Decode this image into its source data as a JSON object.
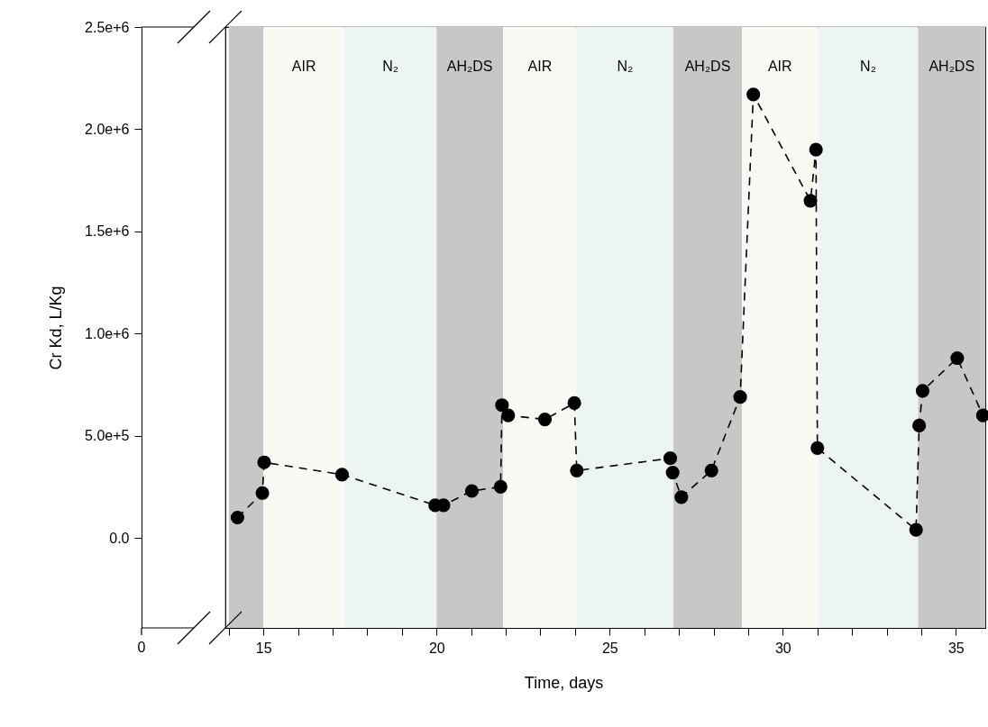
{
  "chart_data": {
    "type": "line",
    "xlabel": "Time, days",
    "ylabel": "Cr Kd, L/Kg",
    "xlim": [
      13.9,
      35.85
    ],
    "ylim": [
      -440000,
      2500000
    ],
    "xticks": [
      {
        "value": 14,
        "label": null
      },
      15,
      {
        "value": 16,
        "label": null
      },
      {
        "value": 17,
        "label": null
      },
      {
        "value": 18,
        "label": null
      },
      {
        "value": 19,
        "label": null
      },
      20,
      {
        "value": 21,
        "label": null
      },
      {
        "value": 22,
        "label": null
      },
      {
        "value": 23,
        "label": null
      },
      {
        "value": 24,
        "label": null
      },
      25,
      {
        "value": 26,
        "label": null
      },
      {
        "value": 27,
        "label": null
      },
      {
        "value": 28,
        "label": null
      },
      {
        "value": 29,
        "label": null
      },
      30,
      {
        "value": 31,
        "label": null
      },
      {
        "value": 32,
        "label": null
      },
      {
        "value": 33,
        "label": null
      },
      {
        "value": 34,
        "label": null
      },
      35
    ],
    "yticks": [
      {
        "value": 0,
        "label": "0.0"
      },
      {
        "value": 500000,
        "label": "5.0e+5"
      },
      {
        "value": 1000000,
        "label": "1.0e+6"
      },
      {
        "value": 1500000,
        "label": "1.5e+6"
      },
      {
        "value": 2000000,
        "label": "2.0e+6"
      },
      {
        "value": 2500000,
        "label": "2.5e+6"
      }
    ],
    "x": [
      14.25,
      14.97,
      15.02,
      17.27,
      19.96,
      20.2,
      21.02,
      21.85,
      21.89,
      22.07,
      23.13,
      23.98,
      24.05,
      26.75,
      26.82,
      27.07,
      27.94,
      28.77,
      29.15,
      30.8,
      30.96,
      31.0,
      33.85,
      33.94,
      34.04,
      35.04,
      35.78
    ],
    "series": [
      {
        "color": "#000000",
        "values": [
          100000,
          220000,
          370000,
          310000,
          160000,
          160000,
          230000,
          250000,
          650000,
          600000,
          580000,
          660000,
          330000,
          390000,
          320000,
          200000,
          330000,
          690000,
          2170000,
          1650000,
          1900000,
          440000,
          40000,
          550000,
          720000,
          880000,
          600000
        ]
      }
    ],
    "bands": [
      {
        "axis": "x",
        "from": 14.0,
        "to": 15.0,
        "color": "#c6c7c6"
      },
      {
        "axis": "x",
        "from": 15.0,
        "to": 17.34,
        "label": "AIR",
        "color": "#f9faf3"
      },
      {
        "axis": "x",
        "from": 17.34,
        "to": 20.0,
        "label": "N₂",
        "color": "#edf5f4"
      },
      {
        "axis": "x",
        "from": 20.0,
        "to": 21.92,
        "label": "AH₂DS",
        "color": "#c6c7c6"
      },
      {
        "axis": "x",
        "from": 21.92,
        "to": 24.05,
        "label": "AIR",
        "color": "#f9faf3"
      },
      {
        "axis": "x",
        "from": 24.05,
        "to": 26.84,
        "label": "N₂",
        "color": "#edf5f4"
      },
      {
        "axis": "x",
        "from": 26.84,
        "to": 28.82,
        "label": "AH₂DS",
        "color": "#c6c7c6"
      },
      {
        "axis": "x",
        "from": 28.82,
        "to": 31.02,
        "label": "AIR",
        "color": "#f9faf3"
      },
      {
        "axis": "x",
        "from": 31.02,
        "to": 33.91,
        "label": "N₂",
        "color": "#edf5f4"
      },
      {
        "axis": "x",
        "from": 33.91,
        "to": 35.85,
        "label": "AH₂DS",
        "color": "#c6c7c6"
      }
    ],
    "annotations": [
      "0"
    ],
    "grid": false,
    "marker": "circle",
    "line_style": "dashed"
  }
}
